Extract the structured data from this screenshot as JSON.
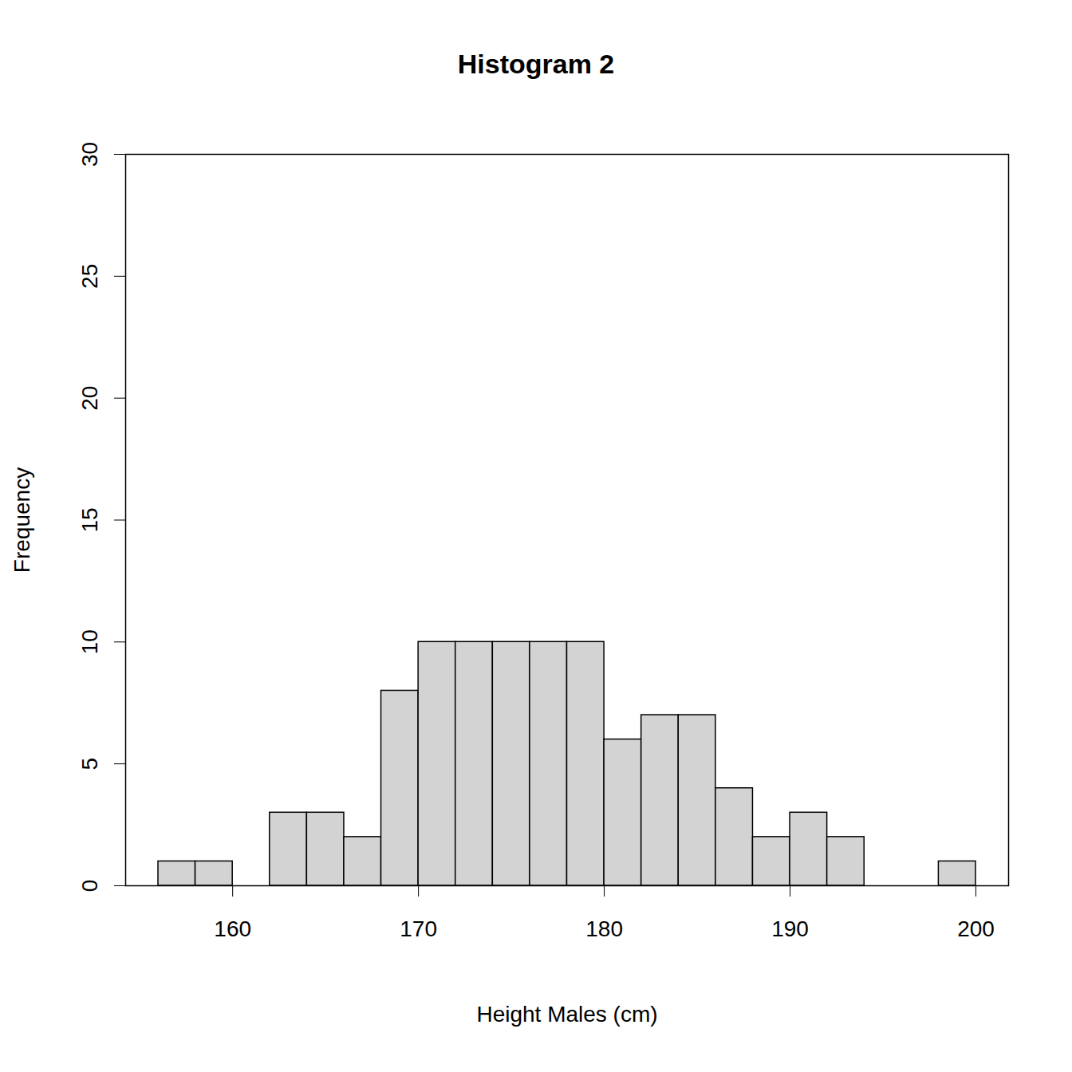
{
  "chart_data": {
    "type": "histogram",
    "title": "Histogram 2",
    "x_label": "Height Males (cm)",
    "y_label": "Frequency",
    "bins": [
      156,
      158,
      160,
      162,
      164,
      166,
      168,
      170,
      172,
      174,
      176,
      178,
      180,
      182,
      184,
      186,
      188,
      190,
      192,
      194,
      196,
      198,
      200
    ],
    "values": [
      1,
      1,
      0,
      3,
      3,
      2,
      8,
      10,
      10,
      10,
      10,
      10,
      6,
      7,
      7,
      4,
      2,
      3,
      2,
      0,
      0,
      1
    ],
    "color": "#d3d3d3",
    "xlim": [
      154.24,
      201.76
    ],
    "xticks": [
      160,
      170,
      180,
      190,
      200
    ],
    "ylim": [
      0,
      30
    ],
    "yticks": [
      0,
      5,
      10,
      15,
      20,
      25,
      30
    ],
    "grid": false
  }
}
